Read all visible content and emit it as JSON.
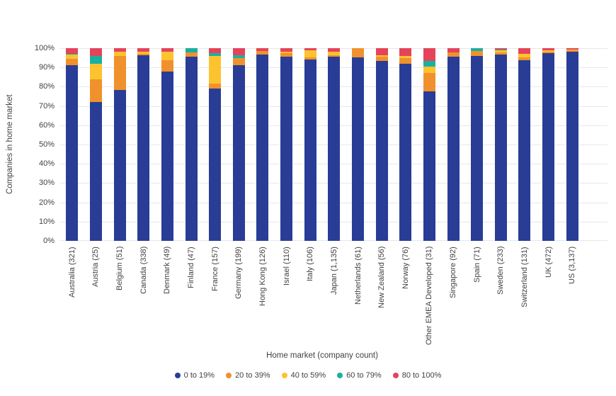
{
  "chart_data": {
    "type": "bar",
    "stacked": true,
    "orientation": "vertical",
    "title": "",
    "xlabel": "Home market (company count)",
    "ylabel": "Companies in home market",
    "ylim": [
      0,
      100
    ],
    "yticks": [
      0,
      10,
      20,
      30,
      40,
      50,
      60,
      70,
      80,
      90,
      100
    ],
    "ytick_suffix": "%",
    "grid": true,
    "legend_position": "bottom",
    "categories": [
      "Australia (321)",
      "Austria (25)",
      "Belgium (51)",
      "Canada (338)",
      "Denmark (49)",
      "Finland (47)",
      "France (157)",
      "Germany (199)",
      "Hong Kong (126)",
      "Israel (110)",
      "Italy (106)",
      "Japan (1,135)",
      "Netherlands (61)",
      "New Zealand (56)",
      "Norway (76)",
      "Other EMEA Developed (31)",
      "Singapore (92)",
      "Spain (71)",
      "Sweden (233)",
      "Switzerland (131)",
      "UK (472)",
      "US (3,137)"
    ],
    "series": [
      {
        "name": "0 to 19%",
        "color": "#293D96",
        "values": [
          91.3,
          72,
          78.4,
          96.2,
          87.8,
          95.7,
          79,
          91,
          96.8,
          95.5,
          94.3,
          95.5,
          95.1,
          93.5,
          92.1,
          77.4,
          95.7,
          95.8,
          96.6,
          93.9,
          97.5,
          98.2
        ]
      },
      {
        "name": "20 to 39%",
        "color": "#F0912D",
        "values": [
          3.1,
          12,
          17.6,
          0.9,
          6.1,
          2.2,
          2.5,
          4,
          1.6,
          1.8,
          0.9,
          1,
          4.9,
          2,
          2.6,
          9.7,
          2.2,
          2.8,
          1.3,
          1.5,
          0.8,
          0.6
        ]
      },
      {
        "name": "40 to 59%",
        "color": "#FCC32F",
        "values": [
          2.2,
          8,
          2,
          0.9,
          4.1,
          0,
          14.6,
          0,
          0,
          0.9,
          3.8,
          1.5,
          0,
          1,
          1.3,
          3.2,
          0,
          0,
          0.9,
          1.5,
          0.6,
          0.4
        ]
      },
      {
        "name": "60 to 79%",
        "color": "#1AB0A0",
        "values": [
          0.3,
          4,
          0,
          0,
          0,
          2.1,
          1.4,
          1.4,
          0,
          0,
          0,
          0,
          0,
          0,
          0,
          3.2,
          0,
          1.4,
          0.3,
          0,
          0,
          0
        ]
      },
      {
        "name": "80 to 100%",
        "color": "#E5435A",
        "values": [
          3.1,
          4,
          2,
          2,
          2,
          0,
          2.5,
          3.6,
          1.6,
          1.8,
          1,
          2,
          0,
          3.5,
          4,
          6.5,
          2.1,
          0,
          0.9,
          3.1,
          1.1,
          0.8
        ]
      }
    ],
    "styles": {
      "background": "#ffffff",
      "grid_color": "#e7e7e7",
      "text_color": "#424242"
    }
  }
}
